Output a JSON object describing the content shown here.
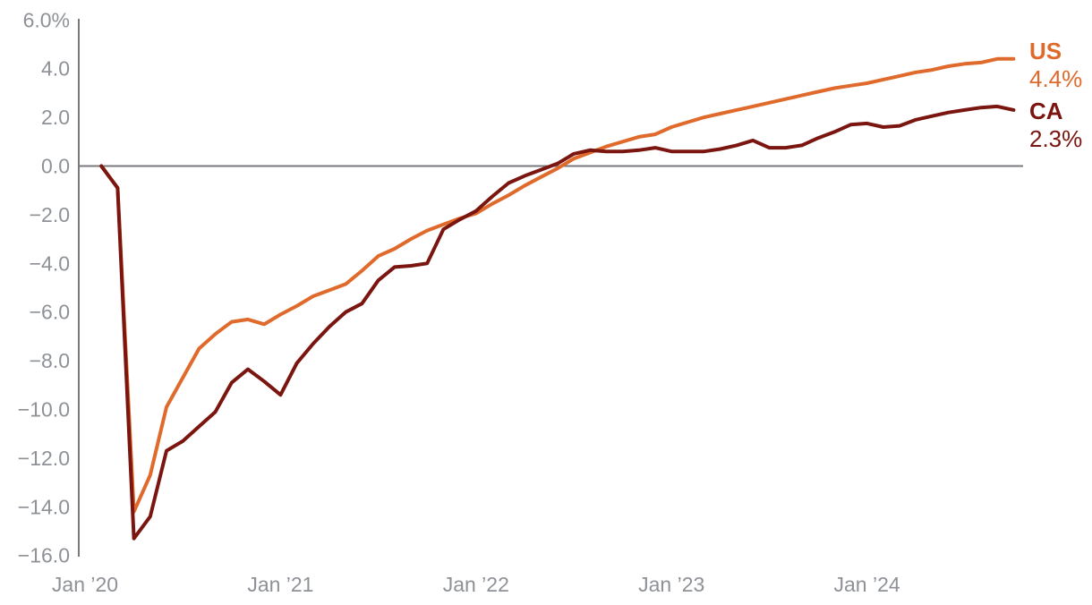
{
  "chart_data": {
    "type": "line",
    "title": "",
    "description": "Two monthly line series (US and CA), percent change in jobs relative to early-2020 level, from Feb 2020 through Oct 2024",
    "grid": "off",
    "zero_baseline": true,
    "legend_position": "right-of-line-ends",
    "y_axis": {
      "range": [
        -16.0,
        6.0
      ],
      "ticks": [
        6,
        4,
        2,
        0,
        -2,
        -4,
        -6,
        -8,
        -10,
        -12,
        -14,
        -16
      ],
      "tick_labels": [
        "6.0%",
        "4.0",
        "2.0",
        "0.0",
        "−2.0",
        "−4.0",
        "−6.0",
        "−8.0",
        "−10.0",
        "−12.0",
        "−14.0",
        "−16.0"
      ]
    },
    "x_axis": {
      "frequency": "monthly",
      "start_month": "Feb 2020",
      "end_month": "Oct 2024",
      "tick_labels": [
        "Jan ’20",
        "Jan ’21",
        "Jan ’22",
        "Jan ’23",
        "Jan ’24"
      ],
      "tick_month_indices": [
        0,
        12,
        24,
        36,
        48
      ],
      "series_start_month_index": 1
    },
    "series": [
      {
        "id": "us",
        "label": "US",
        "end_value_label": "4.4%",
        "color": "#DF6A2B",
        "values": [
          0.0,
          -0.9,
          -14.2,
          -12.7,
          -9.9,
          -8.7,
          -7.5,
          -6.9,
          -6.4,
          -6.3,
          -6.5,
          -6.1,
          -5.75,
          -5.35,
          -5.1,
          -4.85,
          -4.3,
          -3.7,
          -3.4,
          -3.0,
          -2.65,
          -2.4,
          -2.15,
          -1.95,
          -1.55,
          -1.2,
          -0.8,
          -0.45,
          -0.1,
          0.3,
          0.55,
          0.8,
          1.0,
          1.2,
          1.3,
          1.6,
          1.8,
          2.0,
          2.15,
          2.3,
          2.45,
          2.6,
          2.75,
          2.9,
          3.05,
          3.2,
          3.3,
          3.4,
          3.55,
          3.7,
          3.85,
          3.95,
          4.1,
          4.2,
          4.25,
          4.4,
          4.4
        ]
      },
      {
        "id": "ca",
        "label": "CA",
        "end_value_label": "2.3%",
        "color": "#7A150F",
        "values": [
          0.0,
          -0.9,
          -15.3,
          -14.4,
          -11.7,
          -11.3,
          -10.7,
          -10.1,
          -8.9,
          -8.35,
          -8.85,
          -9.4,
          -8.1,
          -7.3,
          -6.6,
          -6.0,
          -5.65,
          -4.7,
          -4.15,
          -4.1,
          -4.0,
          -2.6,
          -2.2,
          -1.85,
          -1.25,
          -0.7,
          -0.4,
          -0.15,
          0.1,
          0.5,
          0.65,
          0.6,
          0.6,
          0.65,
          0.75,
          0.6,
          0.6,
          0.6,
          0.7,
          0.85,
          1.05,
          0.75,
          0.75,
          0.85,
          1.15,
          1.4,
          1.7,
          1.75,
          1.6,
          1.65,
          1.9,
          2.05,
          2.2,
          2.3,
          2.4,
          2.45,
          2.3
        ]
      }
    ]
  },
  "colors": {
    "background": "#FFFFFF",
    "axis_line": "#77787B",
    "zero_line": "#77787B",
    "tick_text": "#8E9297",
    "us_line": "#DF6A2B",
    "ca_line": "#7A150F"
  }
}
